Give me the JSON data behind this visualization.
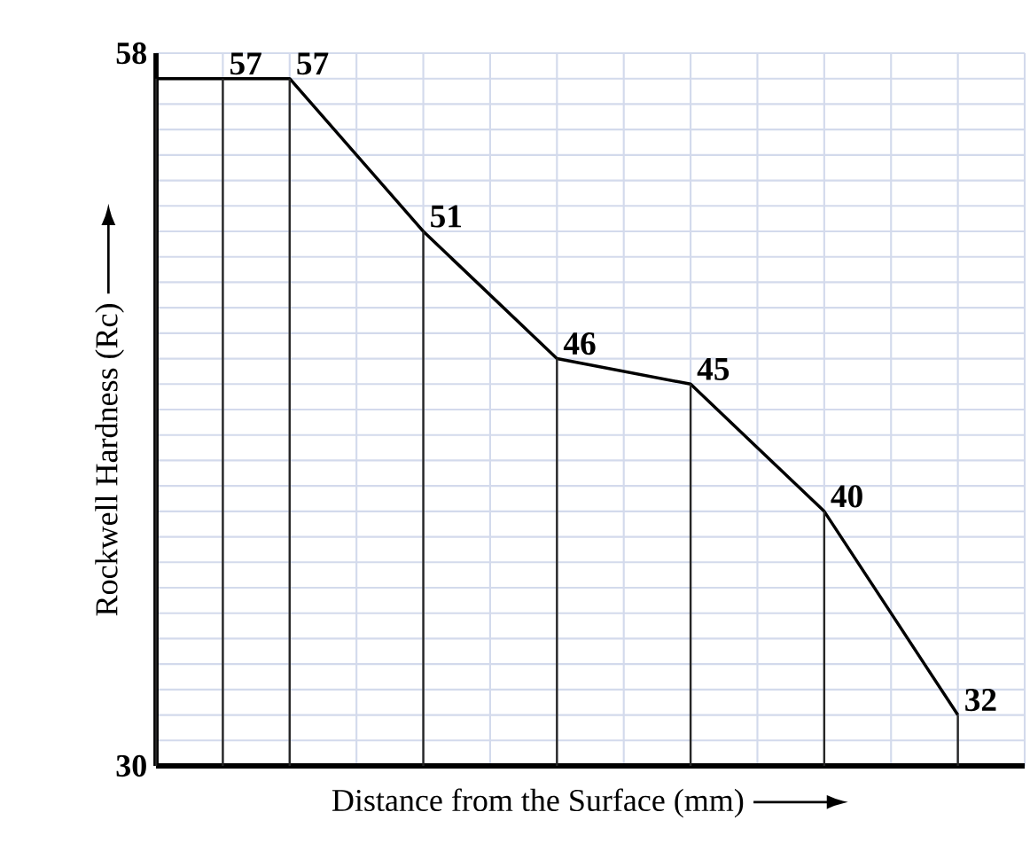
{
  "chart_data": {
    "type": "line",
    "xlabel": "Distance from the Surface (mm)",
    "ylabel": "Rockwell Hardness (Rc)",
    "categories": [
      null,
      null,
      null,
      null,
      null,
      null,
      null,
      null,
      null,
      null,
      null,
      null,
      null
    ],
    "values": [
      57,
      57,
      57,
      null,
      51,
      null,
      46,
      null,
      45,
      null,
      40,
      null,
      32
    ],
    "value_labels": [
      null,
      "57",
      "57",
      null,
      "51",
      null,
      "46",
      null,
      "45",
      null,
      "40",
      null,
      "32"
    ],
    "color": "#000000",
    "ylim": [
      30,
      58
    ],
    "yticks": [
      {
        "value": 30,
        "label": "30"
      },
      {
        "value": 31,
        "label": null
      },
      {
        "value": 32,
        "label": null
      },
      {
        "value": 33,
        "label": null
      },
      {
        "value": 34,
        "label": null
      },
      {
        "value": 35,
        "label": null
      },
      {
        "value": 36,
        "label": null
      },
      {
        "value": 37,
        "label": null
      },
      {
        "value": 38,
        "label": null
      },
      {
        "value": 39,
        "label": null
      },
      {
        "value": 40,
        "label": null
      },
      {
        "value": 41,
        "label": null
      },
      {
        "value": 42,
        "label": null
      },
      {
        "value": 43,
        "label": null
      },
      {
        "value": 44,
        "label": null
      },
      {
        "value": 45,
        "label": null
      },
      {
        "value": 46,
        "label": null
      },
      {
        "value": 47,
        "label": null
      },
      {
        "value": 48,
        "label": null
      },
      {
        "value": 49,
        "label": null
      },
      {
        "value": 50,
        "label": null
      },
      {
        "value": 51,
        "label": null
      },
      {
        "value": 52,
        "label": null
      },
      {
        "value": 53,
        "label": null
      },
      {
        "value": 54,
        "label": null
      },
      {
        "value": 55,
        "label": null
      },
      {
        "value": 56,
        "label": null
      },
      {
        "value": 57,
        "label": null
      },
      {
        "value": 58,
        "label": "58"
      }
    ],
    "grid": true,
    "tick_labels": "y",
    "marker": "none",
    "line_style": "solid"
  }
}
